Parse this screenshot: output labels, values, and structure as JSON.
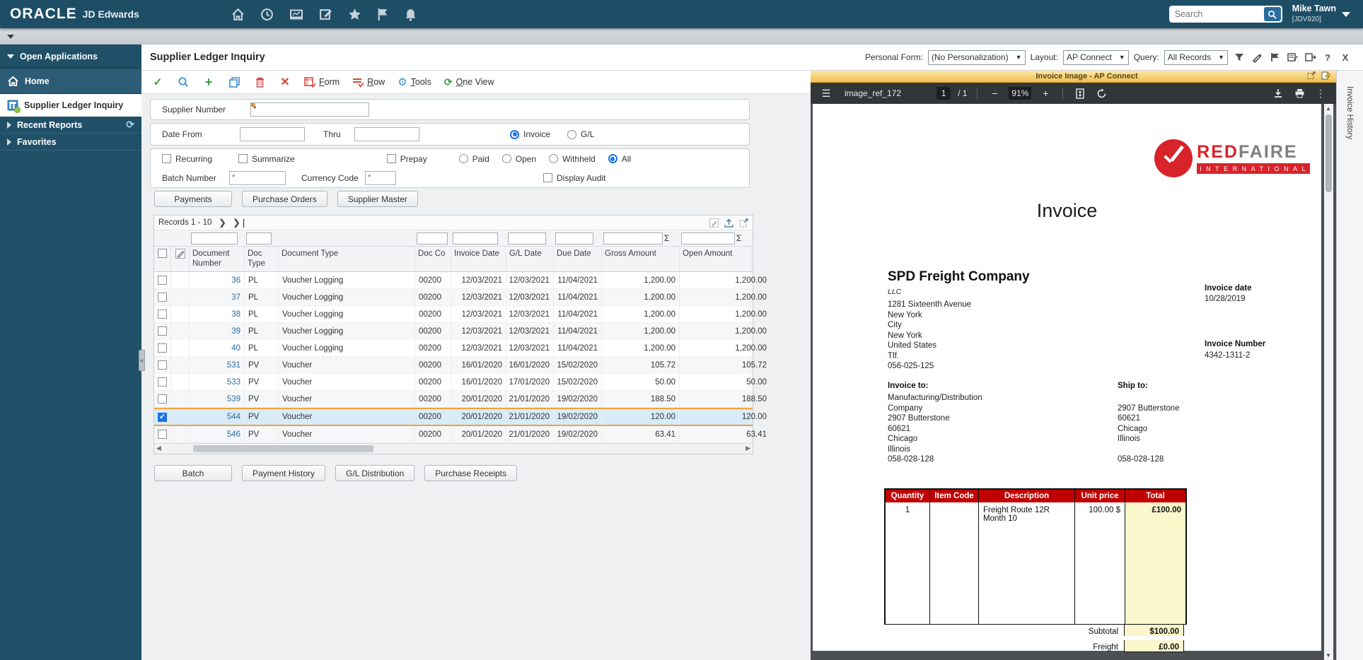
{
  "colors": {
    "topbar_bg": "#1e4e66",
    "brand_red": "#d8232a",
    "selection_orange": "#f0a23c",
    "link_blue": "#2d6da3",
    "table_header_red": "#c00000",
    "total_bg_yellow": "#fcf6cd"
  },
  "topbar": {
    "brand": "ORACLE",
    "brand_suffix": "JD Edwards",
    "search_placeholder": "Search",
    "user_name": "Mike Tawn",
    "user_env": "[JDV920]"
  },
  "sidebar": {
    "open_applications": "Open Applications",
    "items": [
      {
        "label": "Home"
      },
      {
        "label": "Supplier Ledger Inquiry"
      },
      {
        "label": "Recent Reports"
      },
      {
        "label": "Favorites"
      }
    ]
  },
  "header": {
    "title": "Supplier Ledger Inquiry",
    "personal_form_label": "Personal Form:",
    "personal_form_value": "(No Personalization)",
    "layout_label": "Layout:",
    "layout_value": "AP Connect",
    "query_label": "Query:",
    "query_value": "All Records",
    "help_label": "?",
    "close_label": "X"
  },
  "toolbar": {
    "form_label": "Form",
    "row_label": "Row",
    "tools_label": "Tools",
    "oneview_label": "One View"
  },
  "filters": {
    "supplier_number_label": "Supplier Number",
    "supplier_number_value": "*",
    "date_from_label": "Date From",
    "thru_label": "Thru",
    "radio_invoice": "Invoice",
    "radio_gl": "G/L",
    "cb_recurring": "Recurring",
    "cb_summarize": "Summarize",
    "cb_prepay": "Prepay",
    "radio_paid": "Paid",
    "radio_open": "Open",
    "radio_withheld": "Withheld",
    "radio_all": "All",
    "batch_number_label": "Batch Number",
    "batch_number_value": "*",
    "currency_code_label": "Currency Code",
    "currency_code_value": "*",
    "cb_display_audit": "Display Audit"
  },
  "action_buttons_top": [
    "Payments",
    "Purchase Orders",
    "Supplier Master"
  ],
  "action_buttons_bottom": [
    "Batch",
    "Payment History",
    "G/L Distribution",
    "Purchase Receipts"
  ],
  "grid": {
    "records_label": "Records 1 - 10",
    "columns": [
      "Document Number",
      "Doc Type",
      "Document Type",
      "Doc Co",
      "Invoice Date",
      "G/L Date",
      "Due Date",
      "Gross Amount",
      "Open Amount"
    ],
    "rows": [
      {
        "cells": [
          "36",
          "PL",
          "Voucher Logging",
          "00200",
          "12/03/2021",
          "12/03/2021",
          "11/04/2021",
          "1,200.00",
          "1,200.00"
        ],
        "selected": false
      },
      {
        "cells": [
          "37",
          "PL",
          "Voucher Logging",
          "00200",
          "12/03/2021",
          "12/03/2021",
          "11/04/2021",
          "1,200.00",
          "1,200.00"
        ],
        "selected": false
      },
      {
        "cells": [
          "38",
          "PL",
          "Voucher Logging",
          "00200",
          "12/03/2021",
          "12/03/2021",
          "11/04/2021",
          "1,200.00",
          "1,200.00"
        ],
        "selected": false
      },
      {
        "cells": [
          "39",
          "PL",
          "Voucher Logging",
          "00200",
          "12/03/2021",
          "12/03/2021",
          "11/04/2021",
          "1,200.00",
          "1,200.00"
        ],
        "selected": false
      },
      {
        "cells": [
          "40",
          "PL",
          "Voucher Logging",
          "00200",
          "12/03/2021",
          "12/03/2021",
          "11/04/2021",
          "1,200.00",
          "1,200.00"
        ],
        "selected": false
      },
      {
        "cells": [
          "531",
          "PV",
          "Voucher",
          "00200",
          "16/01/2020",
          "16/01/2020",
          "15/02/2020",
          "105.72",
          "105.72"
        ],
        "selected": false
      },
      {
        "cells": [
          "533",
          "PV",
          "Voucher",
          "00200",
          "16/01/2020",
          "17/01/2020",
          "15/02/2020",
          "50.00",
          "50.00"
        ],
        "selected": false
      },
      {
        "cells": [
          "539",
          "PV",
          "Voucher",
          "00200",
          "20/01/2020",
          "21/01/2020",
          "19/02/2020",
          "188.50",
          "188.50"
        ],
        "selected": false
      },
      {
        "cells": [
          "544",
          "PV",
          "Voucher",
          "00200",
          "20/01/2020",
          "21/01/2020",
          "19/02/2020",
          "120.00",
          "120.00"
        ],
        "selected": true
      },
      {
        "cells": [
          "546",
          "PV",
          "Voucher",
          "00200",
          "20/01/2020",
          "21/01/2020",
          "19/02/2020",
          "63.41",
          "63.41"
        ],
        "selected": false
      }
    ]
  },
  "right_panel": {
    "title": "Invoice Image - AP Connect",
    "history_tab": "Invoice History",
    "pdf_toolbar": {
      "file_name": "image_ref_172",
      "page": "1",
      "page_total": "/ 1",
      "zoom": "91%"
    },
    "invoice": {
      "logo_red": "RED",
      "logo_gray": "FAIRE",
      "logo_banner": "INTERNATIONAL",
      "title": "Invoice",
      "company": "SPD Freight Company",
      "company_sub": "LLC",
      "address_lines": [
        "1281 Sixteenth Avenue",
        "New York",
        "City",
        "New York",
        "United States",
        "Tlf.",
        "056-025-125"
      ],
      "invoice_date_label": "Invoice date",
      "invoice_date": "10/28/2019",
      "invoice_number_label": "Invoice Number",
      "invoice_number": "4342-1311-2",
      "invoice_to_label": "Invoice to:",
      "invoice_to_lines": [
        "Manufacturing/Distribution",
        "Company",
        "2907 Butterstone",
        "60621",
        "Chicago",
        "Illinois",
        "058-028-128"
      ],
      "ship_to_label": "Ship to:",
      "ship_to_lines": [
        "",
        "2907 Butterstone",
        "60621",
        "Chicago",
        "Illinois",
        "",
        "058-028-128"
      ],
      "table": {
        "headers": [
          "Quantity",
          "Item Code",
          "Description",
          "Unit price",
          "Total"
        ],
        "row": [
          "1",
          "",
          "Freight Route 12R Month 10",
          "100.00 $",
          "£100.00"
        ],
        "subtotal_label": "Subtotal",
        "subtotal_value": "$100.00",
        "freight_label": "Freight",
        "freight_value": "£0.00"
      }
    }
  }
}
